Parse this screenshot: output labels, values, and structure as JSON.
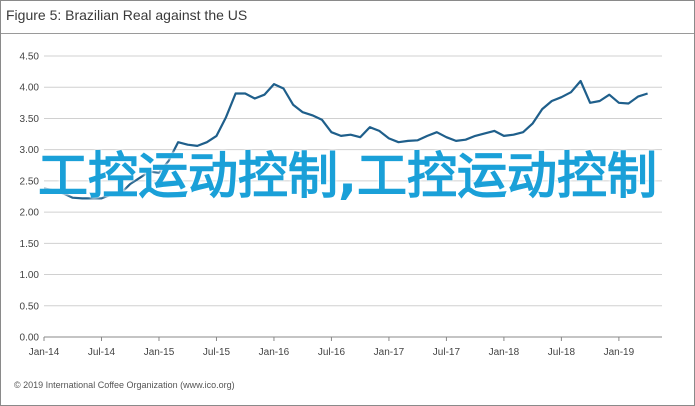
{
  "figure": {
    "title": "Figure 5: Brazilian Real against the US",
    "footer": "© 2019 International Coffee Organization (www.ico.org)"
  },
  "overlay": {
    "text": "工控运动控制,工控运动控制"
  },
  "colors": {
    "line": "#1f5f8b",
    "grid": "#d0d0d0",
    "axis": "#888888",
    "overlay_text": "#1aa0d8"
  },
  "chart_data": {
    "type": "line",
    "title": "Figure 5: Brazilian Real against the US",
    "xlabel": "",
    "ylabel": "",
    "ylim": [
      0,
      4.5
    ],
    "yticks": [
      "0.00",
      "0.50",
      "1.00",
      "1.50",
      "2.00",
      "2.50",
      "3.00",
      "3.50",
      "4.00",
      "4.50"
    ],
    "xtick_labels": [
      "Jan-14",
      "Jul-14",
      "Jan-15",
      "Jul-15",
      "Jan-16",
      "Jul-16",
      "Jan-17",
      "Jul-17",
      "Jan-18",
      "Jul-18",
      "Jan-19"
    ],
    "grid": "horizontal",
    "series": [
      {
        "x": [
          "2014-01",
          "2014-02",
          "2014-03",
          "2014-04",
          "2014-05",
          "2014-06",
          "2014-07",
          "2014-08",
          "2014-09",
          "2014-10",
          "2014-11",
          "2014-12",
          "2015-01",
          "2015-02",
          "2015-03",
          "2015-04",
          "2015-05",
          "2015-06",
          "2015-07",
          "2015-08",
          "2015-09",
          "2015-10",
          "2015-11",
          "2015-12",
          "2016-01",
          "2016-02",
          "2016-03",
          "2016-04",
          "2016-05",
          "2016-06",
          "2016-07",
          "2016-08",
          "2016-09",
          "2016-10",
          "2016-11",
          "2016-12",
          "2017-01",
          "2017-02",
          "2017-03",
          "2017-04",
          "2017-05",
          "2017-06",
          "2017-07",
          "2017-08",
          "2017-09",
          "2017-10",
          "2017-11",
          "2017-12",
          "2018-01",
          "2018-02",
          "2018-03",
          "2018-04",
          "2018-05",
          "2018-06",
          "2018-07",
          "2018-08",
          "2018-09",
          "2018-10",
          "2018-11",
          "2018-12",
          "2019-01",
          "2019-02",
          "2019-03",
          "2019-04"
        ],
        "values": [
          2.38,
          2.35,
          2.3,
          2.23,
          2.22,
          2.22,
          2.22,
          2.28,
          2.3,
          2.45,
          2.55,
          2.65,
          2.63,
          2.82,
          3.12,
          3.08,
          3.06,
          3.12,
          3.22,
          3.52,
          3.9,
          3.9,
          3.82,
          3.88,
          4.05,
          3.98,
          3.72,
          3.6,
          3.55,
          3.48,
          3.28,
          3.22,
          3.24,
          3.2,
          3.36,
          3.3,
          3.18,
          3.12,
          3.14,
          3.15,
          3.22,
          3.28,
          3.2,
          3.14,
          3.16,
          3.22,
          3.26,
          3.3,
          3.22,
          3.24,
          3.28,
          3.42,
          3.65,
          3.78,
          3.84,
          3.92,
          4.1,
          3.75,
          3.78,
          3.88,
          3.75,
          3.74,
          3.85,
          3.9
        ]
      }
    ]
  }
}
